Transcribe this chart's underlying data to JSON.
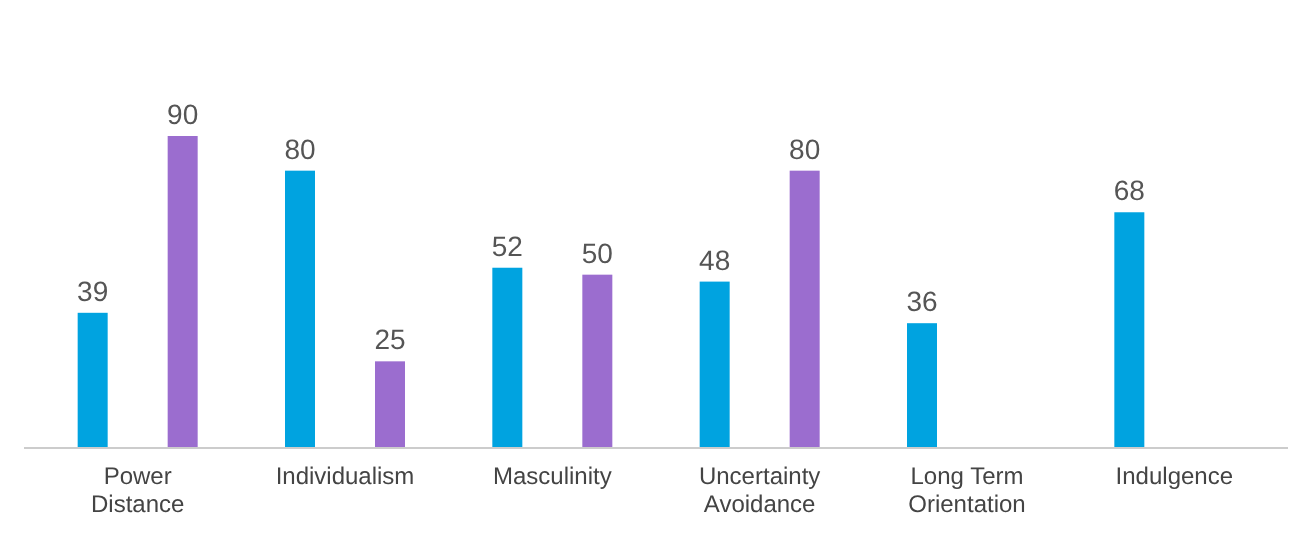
{
  "chart_data": {
    "type": "bar",
    "categories": [
      "Power Distance",
      "Individualism",
      "Masculinity",
      "Uncertainty Avoidance",
      "Long Term Orientation",
      "Indulgence"
    ],
    "series": [
      {
        "color": "#00a3e0",
        "values": [
          39,
          80,
          52,
          48,
          36,
          68
        ]
      },
      {
        "color": "#9b6dcf",
        "values": [
          90,
          25,
          50,
          80,
          null,
          null
        ]
      }
    ],
    "data_labels": true
  }
}
